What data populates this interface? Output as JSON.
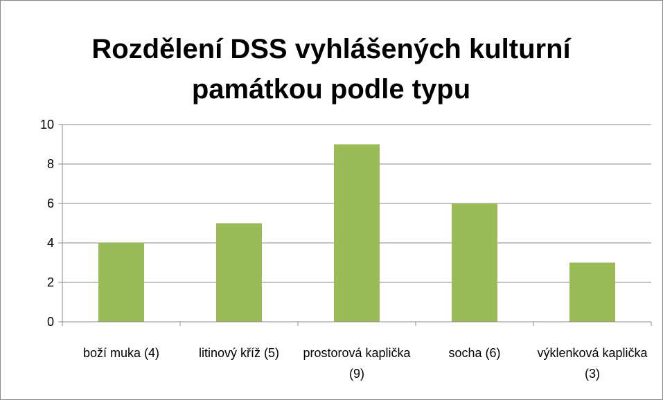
{
  "chart_data": {
    "type": "bar",
    "title": "Rozdělení DSS vyhlášených kulturní památkou podle typu",
    "categories": [
      "boží muka (4)",
      "litinový kříž (5)",
      "prostorová kaplička (9)",
      "socha (6)",
      "výklenková kaplička (3)"
    ],
    "values": [
      4,
      5,
      9,
      6,
      3
    ],
    "color": "#9bbb59",
    "ylim": [
      0,
      10
    ],
    "yticks": [
      0,
      2,
      4,
      6,
      8,
      10
    ],
    "grid": true
  }
}
